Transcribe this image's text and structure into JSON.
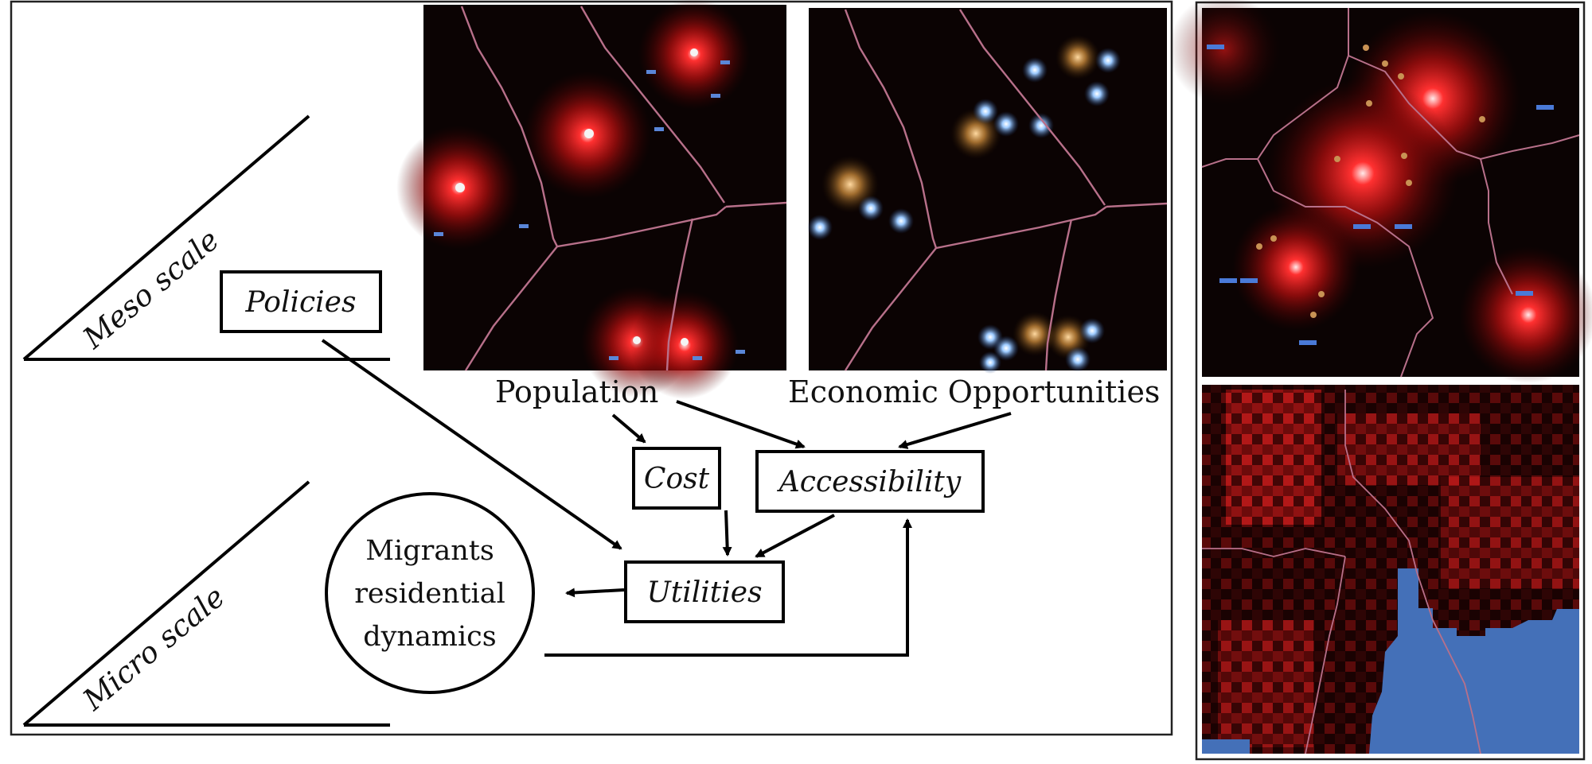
{
  "scales": {
    "meso": "Meso scale",
    "micro": "Micro scale"
  },
  "nodes": {
    "policies": "Policies",
    "population": "Population",
    "economic": "Economic Opportunities",
    "cost": "Cost",
    "accessibility": "Accessibility",
    "utilities": "Utilities",
    "migrants_line1": "Migrants",
    "migrants_line2": "residential",
    "migrants_line3": "dynamics"
  },
  "colors": {
    "population_glow": "#ff2a2a",
    "opportunity_glow": "#8fc6ff",
    "district_border": "#b8708a",
    "water": "#4470b8",
    "map_bg": "#0b0303"
  }
}
